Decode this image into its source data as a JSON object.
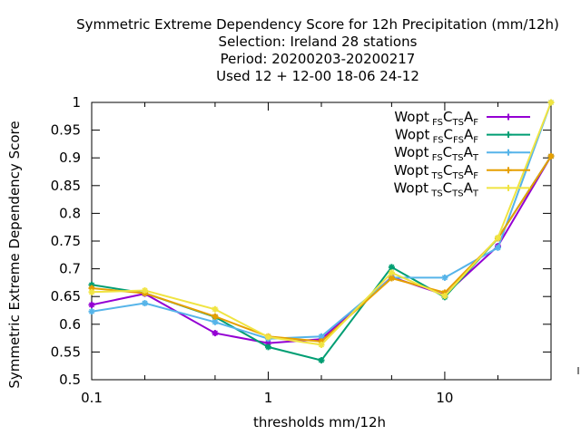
{
  "chart_data": {
    "type": "line",
    "title_lines": [
      "Symmetric Extreme Dependency Score  for 12h Precipitation (mm/12h)",
      "Selection: Ireland     28 stations",
      "Period: 20200203-20200217",
      "Used  12 + 12-00 18-06 24-12"
    ],
    "xlabel": "thresholds mm/12h",
    "ylabel": "Symmetric Extreme Dependency Score",
    "x_scale": "log",
    "xlim": [
      0.1,
      40
    ],
    "ylim": [
      0.5,
      1.0
    ],
    "x_ticks": [
      {
        "value": 0.1,
        "label": "0.1"
      },
      {
        "value": 1,
        "label": "1"
      },
      {
        "value": 10,
        "label": "10"
      }
    ],
    "x_minor_ticks": [
      0.2,
      0.5,
      2,
      5,
      20,
      40
    ],
    "y_ticks": [
      {
        "value": 0.5,
        "label": "0.5"
      },
      {
        "value": 0.55,
        "label": "0.55"
      },
      {
        "value": 0.6,
        "label": "0.6"
      },
      {
        "value": 0.65,
        "label": "0.65"
      },
      {
        "value": 0.7,
        "label": "0.7"
      },
      {
        "value": 0.75,
        "label": "0.75"
      },
      {
        "value": 0.8,
        "label": "0.8"
      },
      {
        "value": 0.85,
        "label": "0.85"
      },
      {
        "value": 0.9,
        "label": "0.9"
      },
      {
        "value": 0.95,
        "label": "0.95"
      },
      {
        "value": 1.0,
        "label": "1"
      }
    ],
    "grid": false,
    "legend_position": "top-right",
    "x": [
      0.1,
      0.2,
      0.5,
      1,
      2,
      5,
      10,
      20,
      40
    ],
    "series": [
      {
        "name": "Wopt",
        "sub1": "FS",
        "mid1": "C",
        "sub2": "TS",
        "mid2": "A",
        "sub3": "F",
        "color": "#9400d3",
        "values": [
          0.635,
          0.655,
          0.584,
          0.566,
          0.573,
          0.685,
          0.653,
          0.741,
          0.903
        ]
      },
      {
        "name": "Wopt",
        "sub1": "FS",
        "mid1": "C",
        "sub2": "FS",
        "mid2": "A",
        "sub3": "F",
        "color": "#009e73",
        "values": [
          0.671,
          0.656,
          0.613,
          0.559,
          0.535,
          0.703,
          0.649,
          0.755,
          0.903
        ]
      },
      {
        "name": "Wopt",
        "sub1": "FS",
        "mid1": "C",
        "sub2": "TS",
        "mid2": "A",
        "sub3": "T",
        "color": "#56b4e9",
        "values": [
          0.623,
          0.638,
          0.604,
          0.574,
          0.578,
          0.684,
          0.684,
          0.738,
          1.0
        ]
      },
      {
        "name": "Wopt",
        "sub1": "TS",
        "mid1": "C",
        "sub2": "TS",
        "mid2": "A",
        "sub3": "F",
        "color": "#e69f00",
        "values": [
          0.665,
          0.656,
          0.614,
          0.578,
          0.569,
          0.683,
          0.657,
          0.755,
          0.903
        ]
      },
      {
        "name": "Wopt",
        "sub1": "TS",
        "mid1": "C",
        "sub2": "TS",
        "mid2": "A",
        "sub3": "T",
        "color": "#f0e442",
        "values": [
          0.658,
          0.661,
          0.627,
          0.577,
          0.563,
          0.693,
          0.651,
          0.756,
          1.0
        ]
      }
    ]
  }
}
